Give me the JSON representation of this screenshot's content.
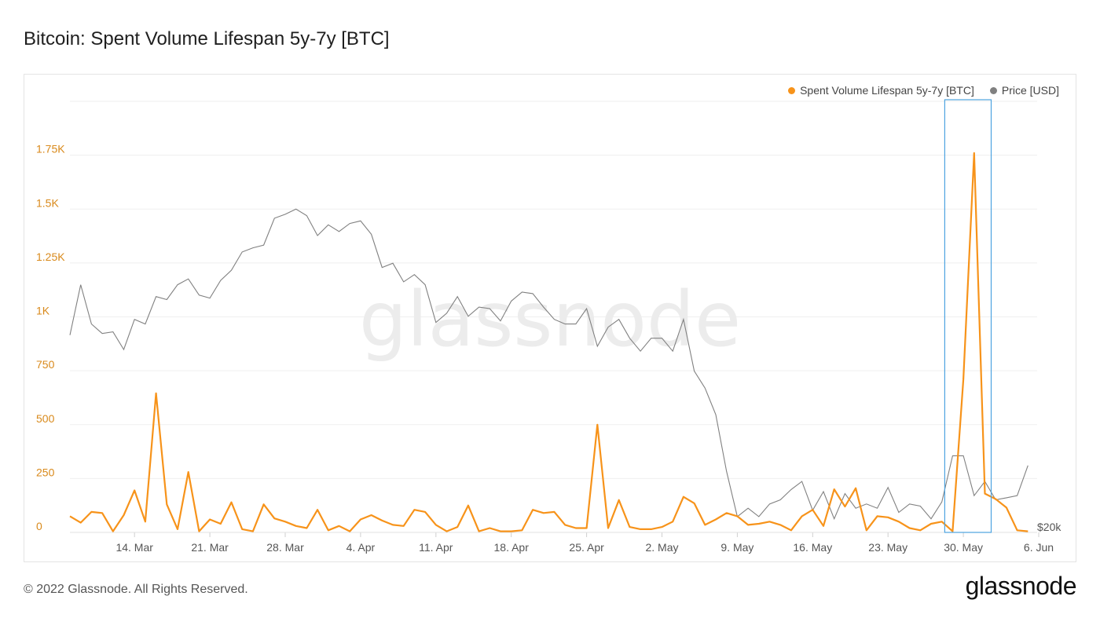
{
  "header": {
    "title": "Bitcoin: Spent Volume Lifespan 5y-7y [BTC]"
  },
  "legend": {
    "items": [
      {
        "label": "Spent Volume Lifespan 5y-7y [BTC]",
        "color": "#f7931a"
      },
      {
        "label": "Price [USD]",
        "color": "#808080"
      }
    ]
  },
  "watermark": {
    "text": "glassnode"
  },
  "footer": {
    "copyright": "© 2022 Glassnode. All Rights Reserved."
  },
  "brand": {
    "logo_text": "glassnode"
  },
  "chart_data": {
    "type": "line",
    "x_start": "2022-03-08",
    "x_tick_labels": [
      "14. Mar",
      "21. Mar",
      "28. Mar",
      "4. Apr",
      "11. Apr",
      "18. Apr",
      "25. Apr",
      "2. May",
      "9. May",
      "16. May",
      "23. May",
      "30. May",
      "6. Jun"
    ],
    "y_left": {
      "ticks": [
        0,
        250,
        500,
        750,
        1000,
        1250,
        1500,
        1750
      ],
      "tick_labels": [
        "0",
        "250",
        "500",
        "750",
        "1K",
        "1.25K",
        "1.5K",
        "1.75K"
      ],
      "ylim": [
        0,
        2000
      ]
    },
    "y_right": {
      "tick_labels": [
        "$20k"
      ],
      "scale": "log"
    },
    "highlight_date_range": [
      "2022-05-30",
      "2022-06-02"
    ],
    "series": [
      {
        "name": "Spent Volume Lifespan 5y-7y [BTC]",
        "axis": "left",
        "color": "#f7931a",
        "values": [
          75,
          45,
          95,
          90,
          5,
          80,
          195,
          50,
          645,
          130,
          15,
          280,
          5,
          60,
          40,
          140,
          15,
          5,
          130,
          65,
          50,
          30,
          20,
          105,
          10,
          30,
          5,
          60,
          80,
          55,
          35,
          30,
          105,
          95,
          35,
          5,
          25,
          125,
          5,
          20,
          5,
          5,
          10,
          105,
          90,
          95,
          35,
          20,
          20,
          500,
          20,
          150,
          25,
          15,
          15,
          25,
          50,
          165,
          135,
          35,
          60,
          90,
          75,
          35,
          40,
          50,
          35,
          10,
          75,
          105,
          30,
          200,
          120,
          205,
          10,
          75,
          70,
          50,
          20,
          10,
          40,
          50,
          5,
          710,
          1760,
          180,
          155,
          115,
          10,
          5
        ]
      },
      {
        "name": "Price [USD]",
        "axis": "right",
        "color": "#808080",
        "values": [
          38700,
          42000,
          39400,
          38800,
          38900,
          37800,
          39700,
          39400,
          41200,
          41000,
          42000,
          42400,
          41300,
          41100,
          42300,
          43000,
          44300,
          44600,
          44800,
          46800,
          47100,
          47500,
          47000,
          45500,
          46300,
          45800,
          46400,
          46600,
          45600,
          43200,
          43500,
          42200,
          42700,
          42000,
          39500,
          40100,
          41200,
          39900,
          40500,
          40400,
          39600,
          40900,
          41500,
          41400,
          40500,
          39700,
          39400,
          39400,
          40400,
          38000,
          39200,
          39700,
          38500,
          37700,
          38500,
          38500,
          37700,
          39700,
          36500,
          35500,
          34000,
          31000,
          28800,
          29200,
          28800,
          29400,
          29600,
          30100,
          30500,
          29100,
          30000,
          28700,
          29900,
          29200,
          29400,
          29200,
          30200,
          29000,
          29400,
          29300,
          28700,
          29500,
          31800,
          31800,
          29800,
          30500,
          29600,
          29700,
          29800,
          31300
        ]
      }
    ]
  }
}
